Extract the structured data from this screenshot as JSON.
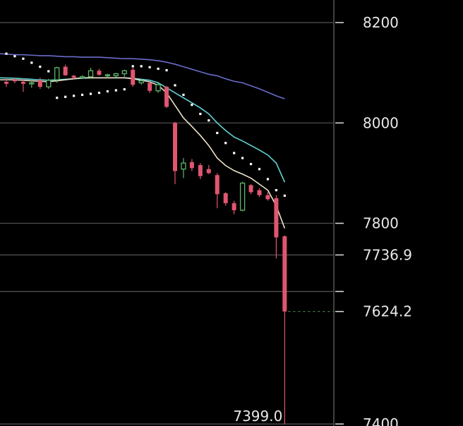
{
  "chart_data": {
    "type": "candlestick",
    "title": "",
    "ylim": [
      7396,
      8245
    ],
    "y_ticks": [
      {
        "value": 8200,
        "label": "8200"
      },
      {
        "value": 8000,
        "label": "8000"
      },
      {
        "value": 7800,
        "label": "7800"
      },
      {
        "value": 7736.9,
        "label": "7736.9"
      },
      {
        "value": 7624.2,
        "label": "7624.2"
      },
      {
        "value": 7400,
        "label": "7400"
      }
    ],
    "grid_levels": [
      8200,
      8000,
      7800,
      7736.9,
      7664,
      7400
    ],
    "last_price": 7624.2,
    "low_label": {
      "value": 7399.0,
      "label": "7399.0",
      "bar_index": 33
    },
    "colors": {
      "up": "#5fb56a",
      "down": "#e0566f",
      "ma_slow": "#6a6cc8",
      "ma_mid": "#63d3d6",
      "ma_fast": "#ece2c6",
      "sar": "#ffffff",
      "grid": "#555555",
      "last_price_line": "#3f7a48",
      "text": "#e8e8e8"
    },
    "candles": [
      {
        "o": 8082,
        "h": 8088,
        "l": 8072,
        "c": 8078
      },
      {
        "o": 8086,
        "h": 8090,
        "l": 8079,
        "c": 8083
      },
      {
        "o": 8082,
        "h": 8088,
        "l": 8062,
        "c": 8078
      },
      {
        "o": 8078,
        "h": 8085,
        "l": 8070,
        "c": 8080
      },
      {
        "o": 8085,
        "h": 8090,
        "l": 8068,
        "c": 8072
      },
      {
        "o": 8072,
        "h": 8088,
        "l": 8068,
        "c": 8085
      },
      {
        "o": 8086,
        "h": 8112,
        "l": 8080,
        "c": 8110
      },
      {
        "o": 8112,
        "h": 8116,
        "l": 8094,
        "c": 8095
      },
      {
        "o": 8094,
        "h": 8096,
        "l": 8086,
        "c": 8090
      },
      {
        "o": 8090,
        "h": 8095,
        "l": 8088,
        "c": 8092
      },
      {
        "o": 8092,
        "h": 8110,
        "l": 8088,
        "c": 8104
      },
      {
        "o": 8104,
        "h": 8108,
        "l": 8094,
        "c": 8096
      },
      {
        "o": 8094,
        "h": 8098,
        "l": 8090,
        "c": 8096
      },
      {
        "o": 8094,
        "h": 8100,
        "l": 8090,
        "c": 8098
      },
      {
        "o": 8098,
        "h": 8106,
        "l": 8092,
        "c": 8104
      },
      {
        "o": 8106,
        "h": 8110,
        "l": 8072,
        "c": 8076
      },
      {
        "o": 8080,
        "h": 8088,
        "l": 8076,
        "c": 8084
      },
      {
        "o": 8080,
        "h": 8082,
        "l": 8060,
        "c": 8064
      },
      {
        "o": 8064,
        "h": 8082,
        "l": 8060,
        "c": 8076
      },
      {
        "o": 8072,
        "h": 8074,
        "l": 8030,
        "c": 8032
      },
      {
        "o": 8000,
        "h": 8002,
        "l": 7878,
        "c": 7904
      },
      {
        "o": 7908,
        "h": 7930,
        "l": 7890,
        "c": 7920
      },
      {
        "o": 7922,
        "h": 7928,
        "l": 7904,
        "c": 7910
      },
      {
        "o": 7916,
        "h": 7920,
        "l": 7888,
        "c": 7894
      },
      {
        "o": 7908,
        "h": 7916,
        "l": 7898,
        "c": 7900
      },
      {
        "o": 7896,
        "h": 7900,
        "l": 7830,
        "c": 7858
      },
      {
        "o": 7860,
        "h": 7862,
        "l": 7835,
        "c": 7840
      },
      {
        "o": 7840,
        "h": 7845,
        "l": 7818,
        "c": 7826
      },
      {
        "o": 7826,
        "h": 7883,
        "l": 7824,
        "c": 7880
      },
      {
        "o": 7876,
        "h": 7878,
        "l": 7858,
        "c": 7862
      },
      {
        "o": 7866,
        "h": 7870,
        "l": 7852,
        "c": 7856
      },
      {
        "o": 7856,
        "h": 7862,
        "l": 7845,
        "c": 7848
      },
      {
        "o": 7850,
        "h": 7856,
        "l": 7730,
        "c": 7772
      },
      {
        "o": 7774,
        "h": 7776,
        "l": 7399,
        "c": 7624.2
      }
    ],
    "ma_slow": [
      8138,
      8136,
      8136,
      8135,
      8134,
      8134,
      8133,
      8132,
      8132,
      8131,
      8131,
      8131,
      8130,
      8129,
      8128,
      8128,
      8127,
      8126,
      8124,
      8121,
      8117,
      8112,
      8107,
      8102,
      8097,
      8094,
      8088,
      8083,
      8080,
      8074,
      8068,
      8061,
      8054,
      8048
    ],
    "ma_mid": [
      8090,
      8089,
      8088,
      8087,
      8086,
      8085,
      8086,
      8087,
      8088,
      8089,
      8090,
      8090,
      8090,
      8090,
      8090,
      8089,
      8087,
      8085,
      8080,
      8070,
      8060,
      8050,
      8040,
      8030,
      8018,
      8000,
      7985,
      7972,
      7964,
      7955,
      7946,
      7936,
      7920,
      7882
    ],
    "ma_fast": [
      8086,
      8086,
      8085,
      8084,
      8083,
      8082,
      8084,
      8086,
      8088,
      8090,
      8090,
      8090,
      8090,
      8090,
      8090,
      8088,
      8085,
      8082,
      8075,
      8060,
      8035,
      8010,
      7993,
      7975,
      7955,
      7930,
      7915,
      7905,
      7898,
      7890,
      7878,
      7866,
      7835,
      7790
    ],
    "sar": [
      8138,
      8133,
      8128,
      8120,
      8112,
      8103,
      8050,
      8052,
      8054,
      8056,
      8058,
      8060,
      8063,
      8065,
      8067,
      8113,
      8113,
      8111,
      8108,
      8105,
      8075,
      8056,
      8036,
      8018,
      8005,
      7980,
      7960,
      7940,
      7930,
      7918,
      7908,
      7888,
      7866,
      7855
    ]
  }
}
